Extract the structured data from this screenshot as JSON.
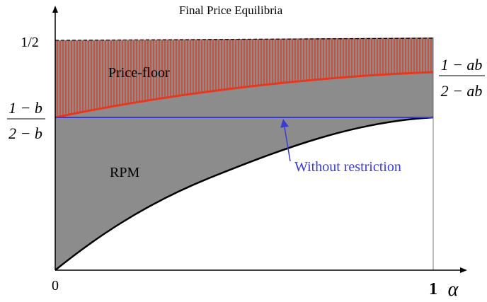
{
  "title": "Final Price Equilibria",
  "y_labels": {
    "half": "1/2",
    "left_fraction": {
      "numerator": "1 − b",
      "denominator": "2 − b"
    }
  },
  "right_fraction": {
    "numerator": "1 − ab",
    "denominator": "2 − ab"
  },
  "regions": {
    "price_floor": "Price-floor",
    "rpm": "RPM"
  },
  "annotation": "Without restriction",
  "x_labels": {
    "zero": "0",
    "one": "1",
    "axis": "α"
  }
}
